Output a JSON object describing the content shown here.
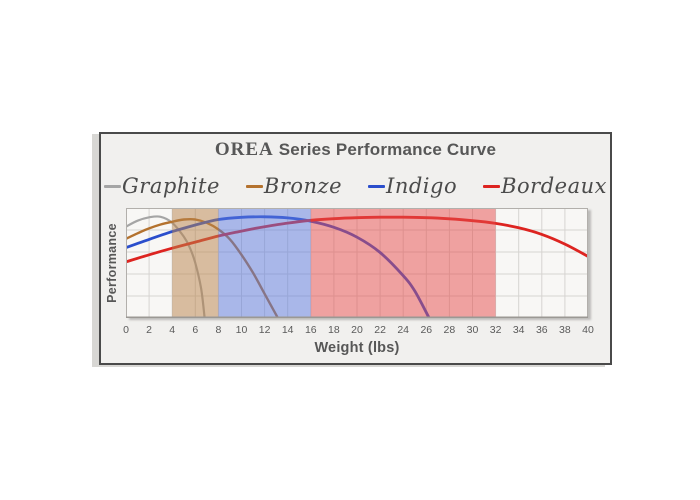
{
  "title": {
    "brand": "OREA",
    "rest": " Series Performance Curve",
    "color": "#575757"
  },
  "legend": {
    "items": [
      {
        "label": "Graphite",
        "color": "#a5a5a5"
      },
      {
        "label": "Bronze",
        "color": "#b4722e"
      },
      {
        "label": "Indigo",
        "color": "#2b4ecc"
      },
      {
        "label": "Bordeaux",
        "color": "#dd2420"
      }
    ],
    "text_color": "#4b4b4b"
  },
  "chart_data": {
    "type": "line",
    "title": "OREA Series Performance Curve",
    "xlabel": "Weight (lbs)",
    "ylabel": "Performance",
    "xlim": [
      0,
      40
    ],
    "ylim": [
      0,
      1
    ],
    "grid": true,
    "y_grid_rows": 5,
    "legend_position": "top",
    "x_ticks": [
      0,
      2,
      4,
      6,
      8,
      10,
      12,
      14,
      16,
      18,
      20,
      22,
      24,
      26,
      28,
      30,
      32,
      34,
      36,
      38,
      40
    ],
    "bands": [
      {
        "name": "bronze-range",
        "from": 4,
        "to": 8,
        "color": "#b8824a",
        "opacity": 0.5
      },
      {
        "name": "indigo-range",
        "from": 8,
        "to": 16,
        "color": "#5a78dd",
        "opacity": 0.5
      },
      {
        "name": "bordeaux-range",
        "from": 16,
        "to": 32,
        "color": "#e64b4b",
        "opacity": 0.5
      }
    ],
    "series": [
      {
        "name": "Graphite",
        "color": "#a5a5a5",
        "width": 2.2,
        "points": [
          [
            0,
            0.83
          ],
          [
            1,
            0.885
          ],
          [
            2,
            0.915
          ],
          [
            3,
            0.92
          ],
          [
            4,
            0.865
          ],
          [
            5,
            0.74
          ],
          [
            5.5,
            0.645
          ],
          [
            6,
            0.5
          ],
          [
            6.5,
            0.27
          ],
          [
            6.8,
            0.01
          ]
        ]
      },
      {
        "name": "Bronze",
        "color": "#b4722e",
        "width": 2.4,
        "points": [
          [
            0,
            0.72
          ],
          [
            1,
            0.77
          ],
          [
            2,
            0.815
          ],
          [
            3,
            0.85
          ],
          [
            4,
            0.875
          ],
          [
            5,
            0.895
          ],
          [
            6,
            0.895
          ],
          [
            7,
            0.865
          ],
          [
            8,
            0.805
          ],
          [
            9,
            0.715
          ],
          [
            10,
            0.575
          ],
          [
            11,
            0.41
          ],
          [
            12,
            0.22
          ],
          [
            13.1,
            0.01
          ]
        ]
      },
      {
        "name": "Indigo",
        "color": "#2b4ecc",
        "width": 2.8,
        "points": [
          [
            0,
            0.64
          ],
          [
            2,
            0.715
          ],
          [
            4,
            0.785
          ],
          [
            6,
            0.845
          ],
          [
            8,
            0.895
          ],
          [
            10,
            0.915
          ],
          [
            12,
            0.92
          ],
          [
            14,
            0.91
          ],
          [
            16,
            0.88
          ],
          [
            18,
            0.825
          ],
          [
            20,
            0.735
          ],
          [
            22,
            0.595
          ],
          [
            24,
            0.385
          ],
          [
            25,
            0.245
          ],
          [
            26.2,
            0.01
          ]
        ]
      },
      {
        "name": "Bordeaux",
        "color": "#dd2420",
        "width": 2.8,
        "points": [
          [
            0,
            0.51
          ],
          [
            2,
            0.575
          ],
          [
            4,
            0.635
          ],
          [
            6,
            0.69
          ],
          [
            8,
            0.745
          ],
          [
            10,
            0.79
          ],
          [
            12,
            0.83
          ],
          [
            14,
            0.863
          ],
          [
            16,
            0.888
          ],
          [
            18,
            0.903
          ],
          [
            20,
            0.912
          ],
          [
            22,
            0.916
          ],
          [
            24,
            0.916
          ],
          [
            26,
            0.912
          ],
          [
            28,
            0.902
          ],
          [
            30,
            0.885
          ],
          [
            32,
            0.86
          ],
          [
            34,
            0.82
          ],
          [
            36,
            0.76
          ],
          [
            38,
            0.672
          ],
          [
            40,
            0.56
          ]
        ]
      }
    ],
    "plot_style": {
      "background": "#f8f7f5",
      "grid_color": "#d6d4d1",
      "border_color": "#b2afab",
      "axis_color": "#9b9894",
      "tick_color": "#5a5a5a",
      "label_color": "#575757"
    }
  }
}
